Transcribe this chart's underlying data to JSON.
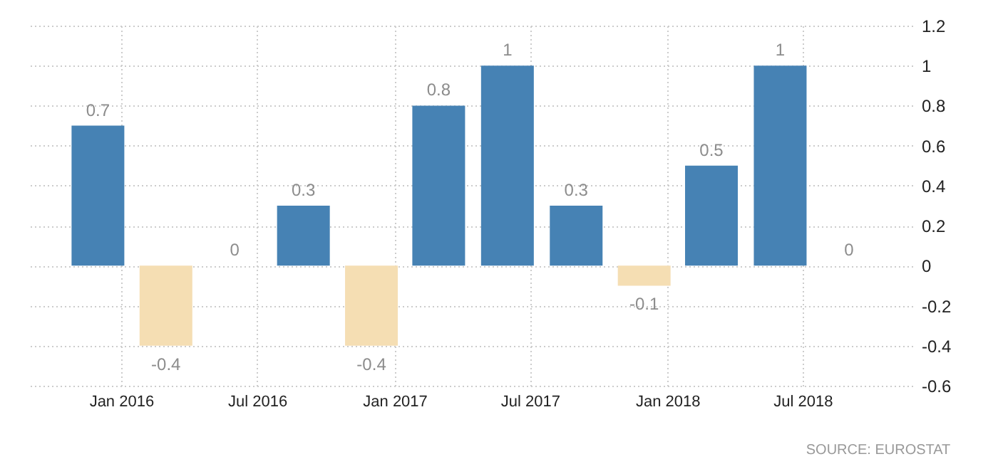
{
  "chart_data": {
    "type": "bar",
    "x": [
      "2015-12",
      "2016-03",
      "2016-06",
      "2016-09",
      "2016-12",
      "2017-03",
      "2017-06",
      "2017-09",
      "2017-12",
      "2018-03",
      "2018-06",
      "2018-09"
    ],
    "values": [
      0.7,
      -0.4,
      0,
      0.3,
      -0.4,
      0.8,
      1,
      0.3,
      -0.1,
      0.5,
      1,
      0
    ],
    "colors": [
      "#4682b4",
      "#f5deb3",
      "#4682b4",
      "#4682b4",
      "#f5deb3",
      "#4682b4",
      "#4682b4",
      "#4682b4",
      "#f5deb3",
      "#4682b4",
      "#4682b4",
      "#4682b4"
    ],
    "xlim": [
      "2015-09-01",
      "2018-11-25"
    ],
    "xticks": [
      {
        "value": "2016-01",
        "label": "Jan 2016"
      },
      {
        "value": "2016-07",
        "label": "Jul 2016"
      },
      {
        "value": "2017-01",
        "label": "Jan 2017"
      },
      {
        "value": "2017-07",
        "label": "Jul 2017"
      },
      {
        "value": "2018-01",
        "label": "Jan 2018"
      },
      {
        "value": "2018-07",
        "label": "Jul 2018"
      }
    ],
    "ylim": [
      -0.6,
      1.2
    ],
    "yticks": [
      -0.6,
      -0.4,
      -0.2,
      0,
      0.2,
      0.4,
      0.6,
      0.8,
      1,
      1.2
    ],
    "grid": true,
    "data_labels": true,
    "annotations": [
      "SOURCE: EUROSTAT"
    ]
  }
}
